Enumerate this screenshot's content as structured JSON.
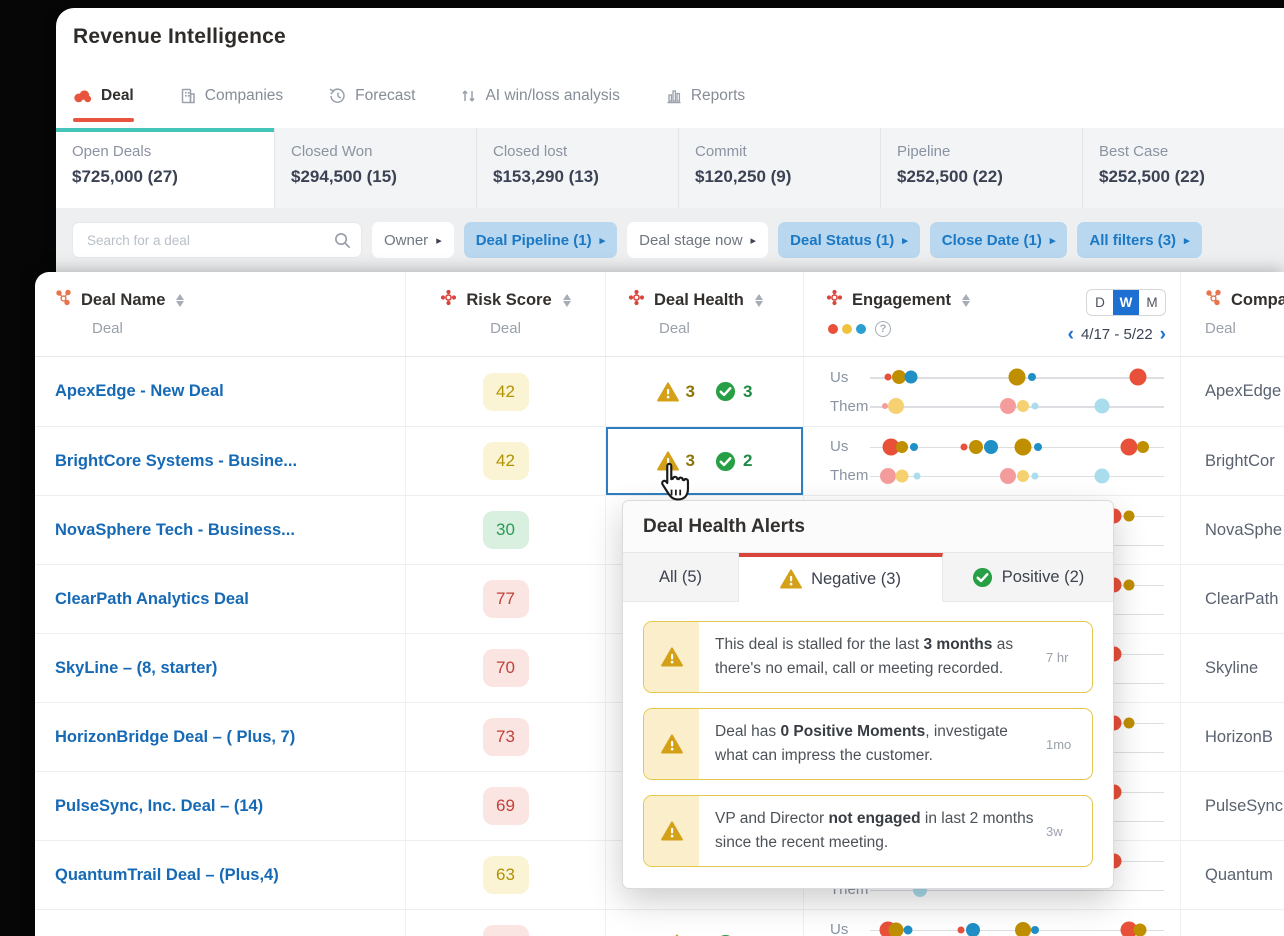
{
  "colors": {
    "accent_red": "#e8553f",
    "active_card_teal": "#45c4b9",
    "link_blue": "#1569b5",
    "chip_blue_bg": "#b9d8ef",
    "chip_blue_text": "#1b78c4",
    "toggle_blue": "#1d6fd1",
    "warning_gold": "#d4a017",
    "positive_green": "#27a045",
    "alert_border": "#e2c94e"
  },
  "header": {
    "title": "Revenue Intelligence",
    "tabs": [
      {
        "label": "Deal",
        "icon": "deal-icon",
        "active": true
      },
      {
        "label": "Companies",
        "icon": "companies-icon",
        "active": false
      },
      {
        "label": "Forecast",
        "icon": "forecast-icon",
        "active": false
      },
      {
        "label": "AI win/loss analysis",
        "icon": "winloss-icon",
        "active": false
      },
      {
        "label": "Reports",
        "icon": "reports-icon",
        "active": false
      }
    ]
  },
  "summary_cards": [
    {
      "label": "Open Deals",
      "value": "$725,000 (27)",
      "active": true
    },
    {
      "label": "Closed Won",
      "value": "$294,500 (15)",
      "active": false
    },
    {
      "label": "Closed lost",
      "value": "$153,290 (13)",
      "active": false
    },
    {
      "label": "Commit",
      "value": "$120,250 (9)",
      "active": false
    },
    {
      "label": "Pipeline",
      "value": "$252,500 (22)",
      "active": false
    },
    {
      "label": "Best Case",
      "value": "$252,500 (22)",
      "active": false
    }
  ],
  "filter_bar": {
    "search_placeholder": "Search for a deal",
    "chips": [
      {
        "label": "Owner",
        "active": false
      },
      {
        "label": "Deal Pipeline (1)",
        "active": true
      },
      {
        "label": "Deal stage now",
        "active": false
      },
      {
        "label": "Deal Status (1)",
        "active": true
      },
      {
        "label": "Close Date (1)",
        "active": true
      },
      {
        "label": "All filters (3)",
        "active": true
      }
    ]
  },
  "table": {
    "columns": [
      {
        "title": "Deal Name",
        "subtitle": "Deal",
        "icon": "hubspot-icon"
      },
      {
        "title": "Risk Score",
        "subtitle": "Deal",
        "icon": "flower-icon"
      },
      {
        "title": "Deal Health",
        "subtitle": "Deal",
        "icon": "flower-icon"
      },
      {
        "title": "Engagement",
        "subtitle": "",
        "icon": "flower-icon"
      },
      {
        "title": "Companies",
        "subtitle": "Deal",
        "icon": "hubspot-icon"
      }
    ],
    "engagement_header": {
      "toggle": [
        "D",
        "W",
        "M"
      ],
      "selected_toggle": "W",
      "prev": "‹",
      "date_range": "4/17 - 5/22",
      "next": "›"
    },
    "row_labels": {
      "us": "Us",
      "them": "Them"
    },
    "dot_colors": {
      "red": "#e8503a",
      "gold": "#bf8f00",
      "blue": "#1f8fc6",
      "pink": "#f49c9c",
      "lightgold": "#f6d172",
      "lightblue": "#a9dcec"
    },
    "legend_dots": [
      "#e8503a",
      "#f0c33f",
      "#2a9fd0"
    ],
    "rows": [
      {
        "name": "ApexEdge - New Deal",
        "risk": {
          "value": "42",
          "level": "yellow"
        },
        "health": {
          "negative": "3",
          "positive": "3"
        },
        "selected": false,
        "company": "ApexEdge",
        "us": [
          [
            6,
            "red",
            7
          ],
          [
            10,
            "gold",
            14
          ],
          [
            14,
            "blue",
            13
          ],
          [
            50,
            "gold",
            17
          ],
          [
            55,
            "blue",
            8
          ],
          [
            91,
            "red",
            17
          ]
        ],
        "them": [
          [
            5,
            "pink",
            6
          ],
          [
            9,
            "lightgold",
            16
          ],
          [
            47,
            "pink",
            16
          ],
          [
            52,
            "lightgold",
            12
          ],
          [
            56,
            "lightblue",
            7
          ],
          [
            79,
            "lightblue",
            15
          ]
        ]
      },
      {
        "name": "BrightCore Systems - Busine...",
        "risk": {
          "value": "42",
          "level": "yellow"
        },
        "health": {
          "negative": "3",
          "positive": "2"
        },
        "selected": true,
        "company": "BrightCor",
        "us": [
          [
            7,
            "red",
            17
          ],
          [
            11,
            "gold",
            12
          ],
          [
            15,
            "blue",
            8
          ],
          [
            32,
            "red",
            7
          ],
          [
            36,
            "gold",
            14
          ],
          [
            41,
            "blue",
            14
          ],
          [
            52,
            "gold",
            17
          ],
          [
            57,
            "blue",
            8
          ],
          [
            88,
            "red",
            17
          ],
          [
            93,
            "gold",
            12
          ]
        ],
        "them": [
          [
            6,
            "pink",
            16
          ],
          [
            11,
            "lightgold",
            13
          ],
          [
            16,
            "lightblue",
            7
          ],
          [
            47,
            "pink",
            16
          ],
          [
            52,
            "lightgold",
            12
          ],
          [
            56,
            "lightblue",
            7
          ],
          [
            79,
            "lightblue",
            15
          ]
        ]
      },
      {
        "name": "NovaSphere Tech - Business...",
        "risk": {
          "value": "30",
          "level": "green"
        },
        "health": null,
        "selected": false,
        "company": "NovaSphe",
        "us": [
          [
            83,
            "red",
            15
          ],
          [
            88,
            "gold",
            11
          ]
        ],
        "them": []
      },
      {
        "name": "ClearPath Analytics Deal",
        "risk": {
          "value": "77",
          "level": "red"
        },
        "health": null,
        "selected": false,
        "company": "ClearPath",
        "us": [
          [
            83,
            "red",
            15
          ],
          [
            88,
            "gold",
            11
          ]
        ],
        "them": []
      },
      {
        "name": "SkyLine – (8, starter)",
        "risk": {
          "value": "70",
          "level": "red"
        },
        "health": null,
        "selected": false,
        "company": "Skyline",
        "us": [
          [
            83,
            "red",
            15
          ]
        ],
        "them": []
      },
      {
        "name": "HorizonBridge Deal – ( Plus, 7)",
        "risk": {
          "value": "73",
          "level": "red"
        },
        "health": null,
        "selected": false,
        "company": "HorizonB",
        "us": [
          [
            83,
            "red",
            15
          ],
          [
            88,
            "gold",
            11
          ]
        ],
        "them": []
      },
      {
        "name": "PulseSync, Inc. Deal – (14)",
        "risk": {
          "value": "69",
          "level": "red"
        },
        "health": null,
        "selected": false,
        "company": "PulseSync",
        "us": [
          [
            83,
            "red",
            15
          ]
        ],
        "them": []
      },
      {
        "name": "QuantumTrail Deal – (Plus,4)",
        "risk": {
          "value": "63",
          "level": "yellow"
        },
        "health": null,
        "selected": false,
        "company": "Quantum",
        "us": [
          [
            83,
            "red",
            15
          ]
        ],
        "them": [
          [
            17,
            "lightblue",
            14
          ]
        ]
      },
      {
        "name": "",
        "risk": {
          "value": "",
          "level": "red"
        },
        "health": {
          "negative": "",
          "positive": ""
        },
        "selected": false,
        "company": "",
        "us": [
          [
            6,
            "red",
            17
          ],
          [
            9,
            "gold",
            15
          ],
          [
            13,
            "blue",
            9
          ],
          [
            31,
            "red",
            7
          ],
          [
            35,
            "blue",
            14
          ],
          [
            52,
            "gold",
            16
          ],
          [
            56,
            "blue",
            8
          ],
          [
            88,
            "red",
            17
          ],
          [
            92,
            "gold",
            13
          ]
        ],
        "them": []
      }
    ]
  },
  "popup": {
    "title": "Deal Health Alerts",
    "tabs": [
      {
        "label": "All (5)",
        "icon": null,
        "active": false
      },
      {
        "label": "Negative (3)",
        "icon": "warning-icon",
        "active": true
      },
      {
        "label": "Positive (2)",
        "icon": "check-icon",
        "active": false
      }
    ],
    "alerts": [
      {
        "segments": [
          {
            "t": "This deal is stalled for the last "
          },
          {
            "t": "3 months",
            "b": true
          },
          {
            "t": " as there's no email, call or meeting recorded."
          }
        ],
        "time": "7 hr"
      },
      {
        "segments": [
          {
            "t": "Deal has "
          },
          {
            "t": "0 Positive Moments",
            "b": true
          },
          {
            "t": ", investigate what can impress the customer."
          }
        ],
        "time": "1mo"
      },
      {
        "segments": [
          {
            "t": "VP and Director "
          },
          {
            "t": "not engaged",
            "b": true
          },
          {
            "t": " in last 2 months since the recent meeting."
          }
        ],
        "time": "3w"
      }
    ]
  }
}
